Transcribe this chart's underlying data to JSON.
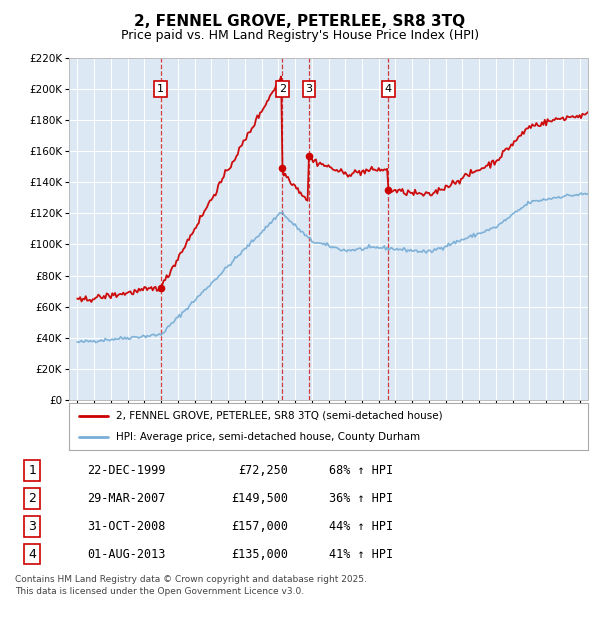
{
  "title": "2, FENNEL GROVE, PETERLEE, SR8 3TQ",
  "subtitle": "Price paid vs. HM Land Registry's House Price Index (HPI)",
  "ylim": [
    0,
    220000
  ],
  "yticks": [
    0,
    20000,
    40000,
    60000,
    80000,
    100000,
    120000,
    140000,
    160000,
    180000,
    200000,
    220000
  ],
  "ytick_labels": [
    "£0",
    "£20K",
    "£40K",
    "£60K",
    "£80K",
    "£100K",
    "£120K",
    "£140K",
    "£160K",
    "£180K",
    "£200K",
    "£220K"
  ],
  "transactions": [
    {
      "label": "1",
      "date": "22-DEC-1999",
      "price": 72250,
      "year": 1999.97,
      "hpi_pct": "68% ↑ HPI"
    },
    {
      "label": "2",
      "date": "29-MAR-2007",
      "price": 149500,
      "year": 2007.24,
      "hpi_pct": "36% ↑ HPI"
    },
    {
      "label": "3",
      "date": "31-OCT-2008",
      "price": 157000,
      "year": 2008.83,
      "hpi_pct": "44% ↑ HPI"
    },
    {
      "label": "4",
      "date": "01-AUG-2013",
      "price": 135000,
      "year": 2013.58,
      "hpi_pct": "41% ↑ HPI"
    }
  ],
  "red_color": "#cc0000",
  "blue_color": "#7aaed6",
  "dashed_color": "#cc0000",
  "marker_box_color": "#cc0000",
  "legend_label_red": "2, FENNEL GROVE, PETERLEE, SR8 3TQ (semi-detached house)",
  "legend_label_blue": "HPI: Average price, semi-detached house, County Durham",
  "footer": "Contains HM Land Registry data © Crown copyright and database right 2025.\nThis data is licensed under the Open Government Licence v3.0.",
  "plot_bg_color": "#dce9f5",
  "xlim": [
    1994.5,
    2025.5
  ],
  "xticks": [
    1995,
    1996,
    1997,
    1998,
    1999,
    2000,
    2001,
    2002,
    2003,
    2004,
    2005,
    2006,
    2007,
    2008,
    2009,
    2010,
    2011,
    2012,
    2013,
    2014,
    2015,
    2016,
    2017,
    2018,
    2019,
    2020,
    2021,
    2022,
    2023,
    2024,
    2025
  ]
}
